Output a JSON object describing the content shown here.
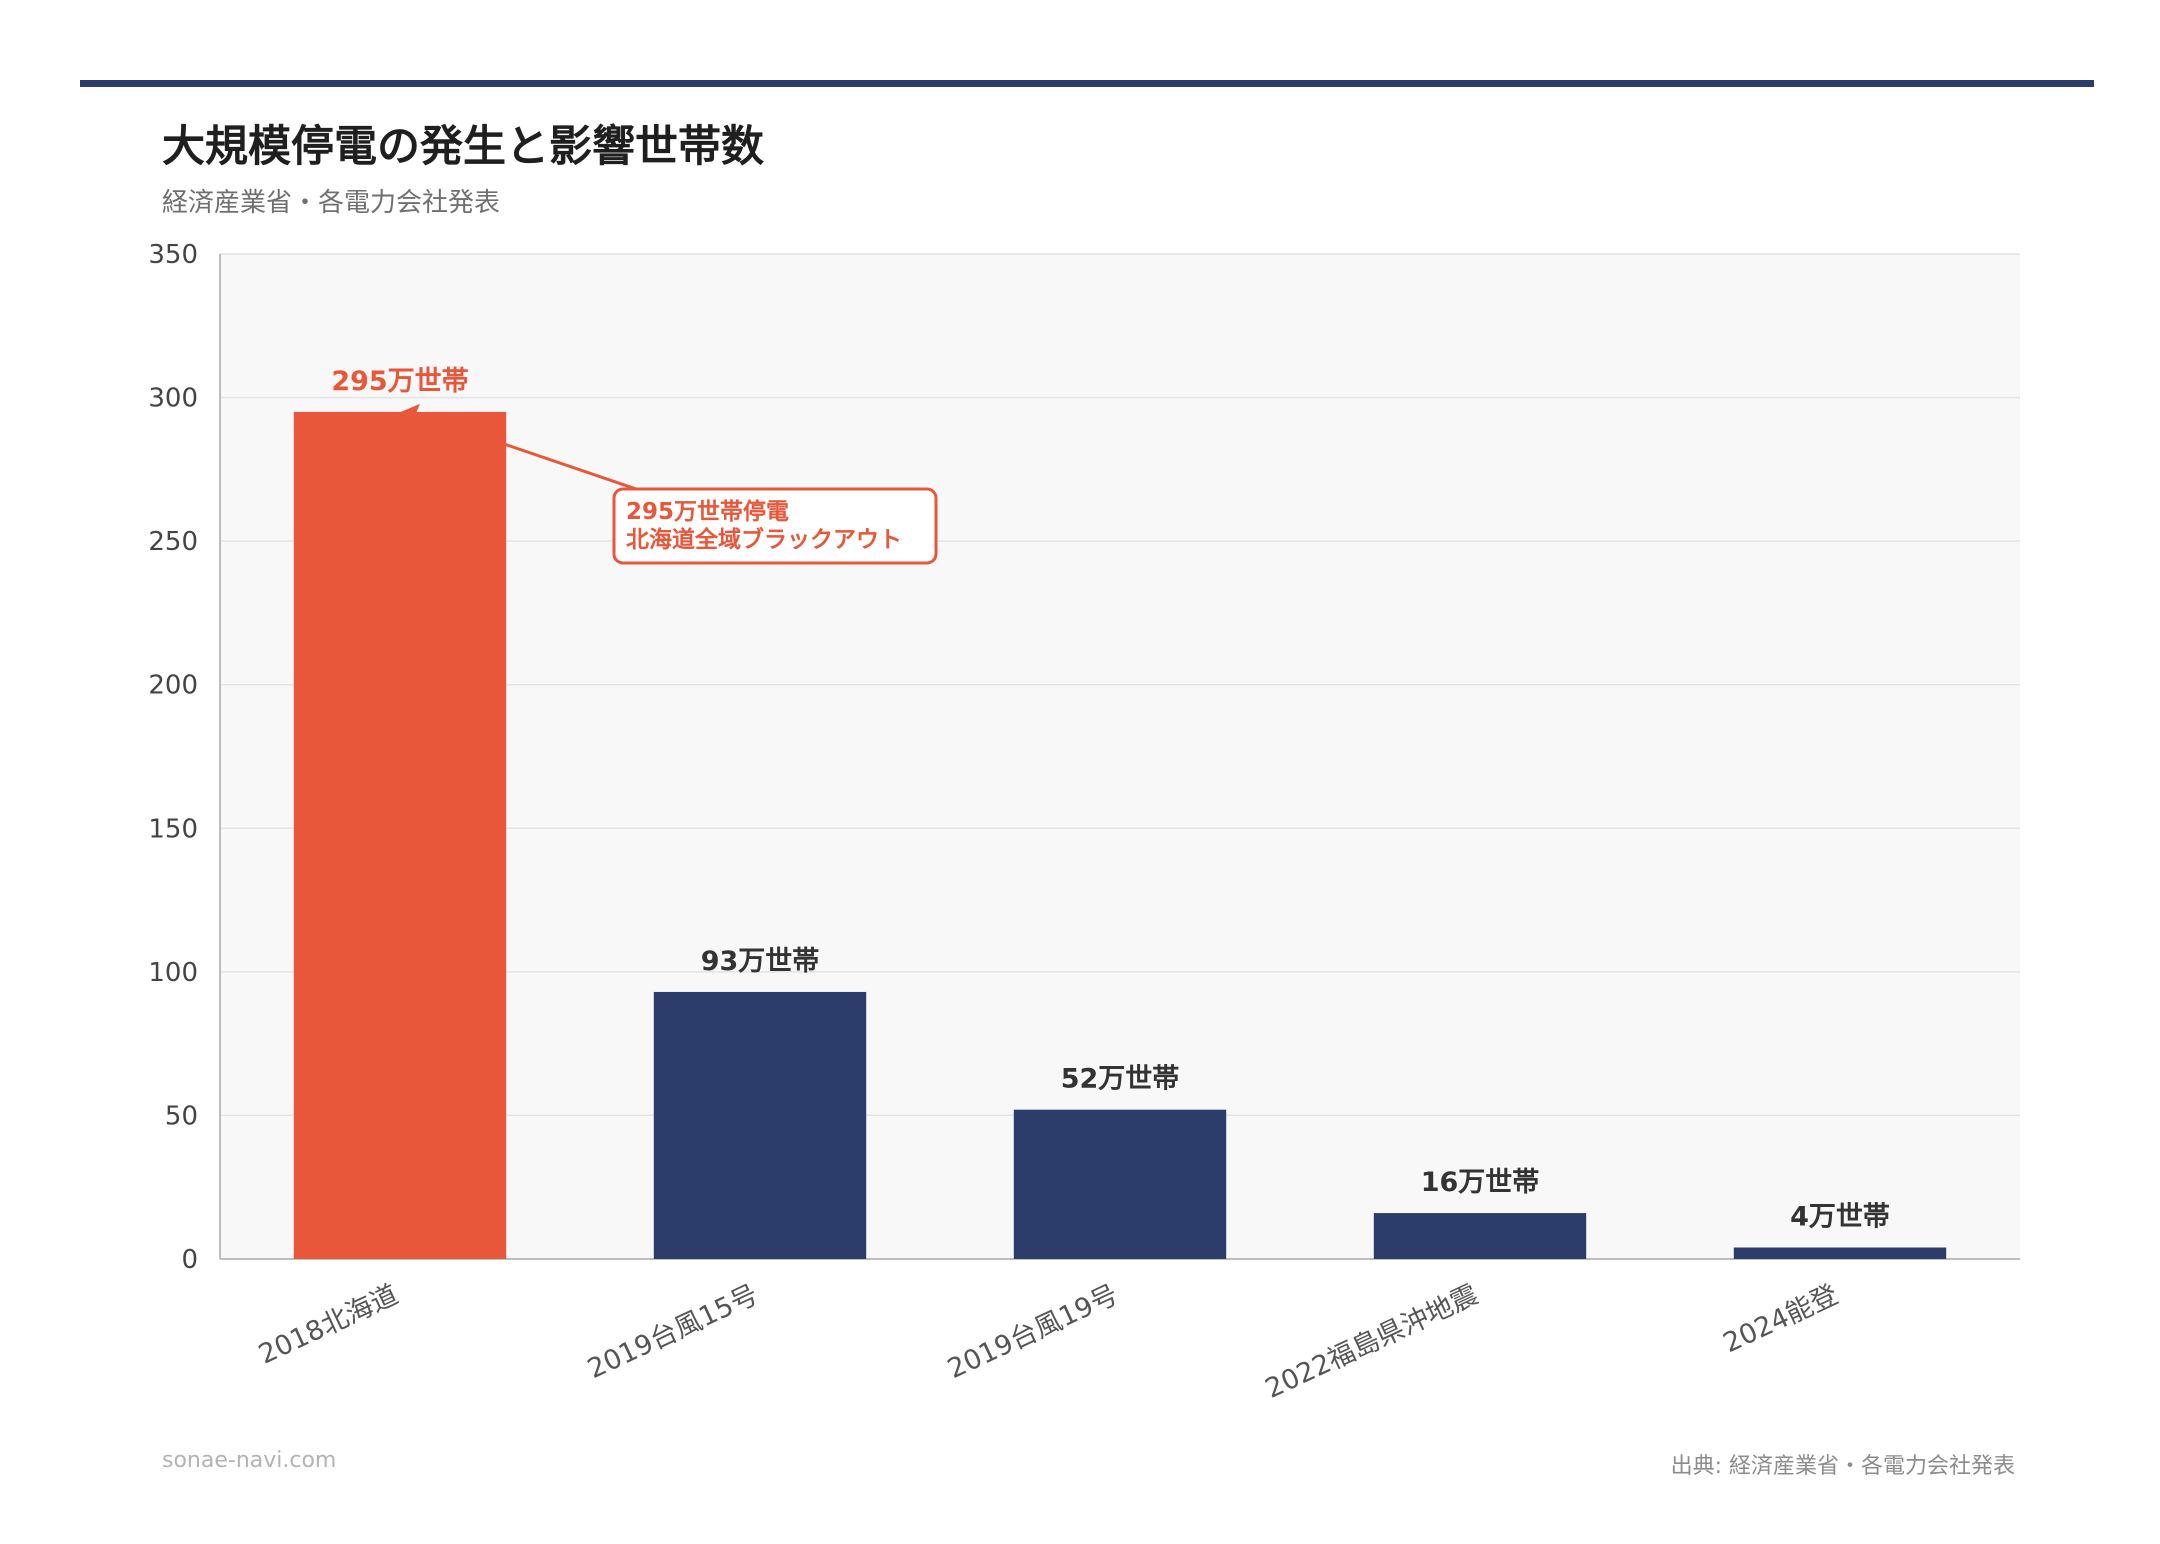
{
  "header": {
    "title": "大規模停電の発生と影響世帯数",
    "subtitle": "経済産業省・各電力会社発表"
  },
  "footer": {
    "site": "sonae-navi.com",
    "source": "出典: 経済産業省・各電力会社発表"
  },
  "colors": {
    "highlight": "#e8573a",
    "bar": "#2d3d6b",
    "plot_background": "#f8f8f8",
    "grid": "#e3e3e3",
    "top_rule": "#2d3d6b"
  },
  "chart_data": {
    "type": "bar",
    "categories": [
      "2018北海道",
      "2019台風15号",
      "2019台風19号",
      "2022福島県沖地震",
      "2024能登"
    ],
    "values": [
      295,
      93,
      52,
      16,
      4
    ],
    "data_labels": [
      "295万世帯",
      "93万世帯",
      "52万世帯",
      "16万世帯",
      "4万世帯"
    ],
    "highlight_index": 0,
    "ylim": [
      0,
      350
    ],
    "yticks": [
      0,
      50,
      100,
      150,
      200,
      250,
      300,
      350
    ],
    "grid": true,
    "xlabel": "",
    "ylabel": "",
    "annotation": {
      "lines": [
        "295万世帯停電",
        "北海道全域ブラックアウト"
      ],
      "target_index": 0
    }
  }
}
